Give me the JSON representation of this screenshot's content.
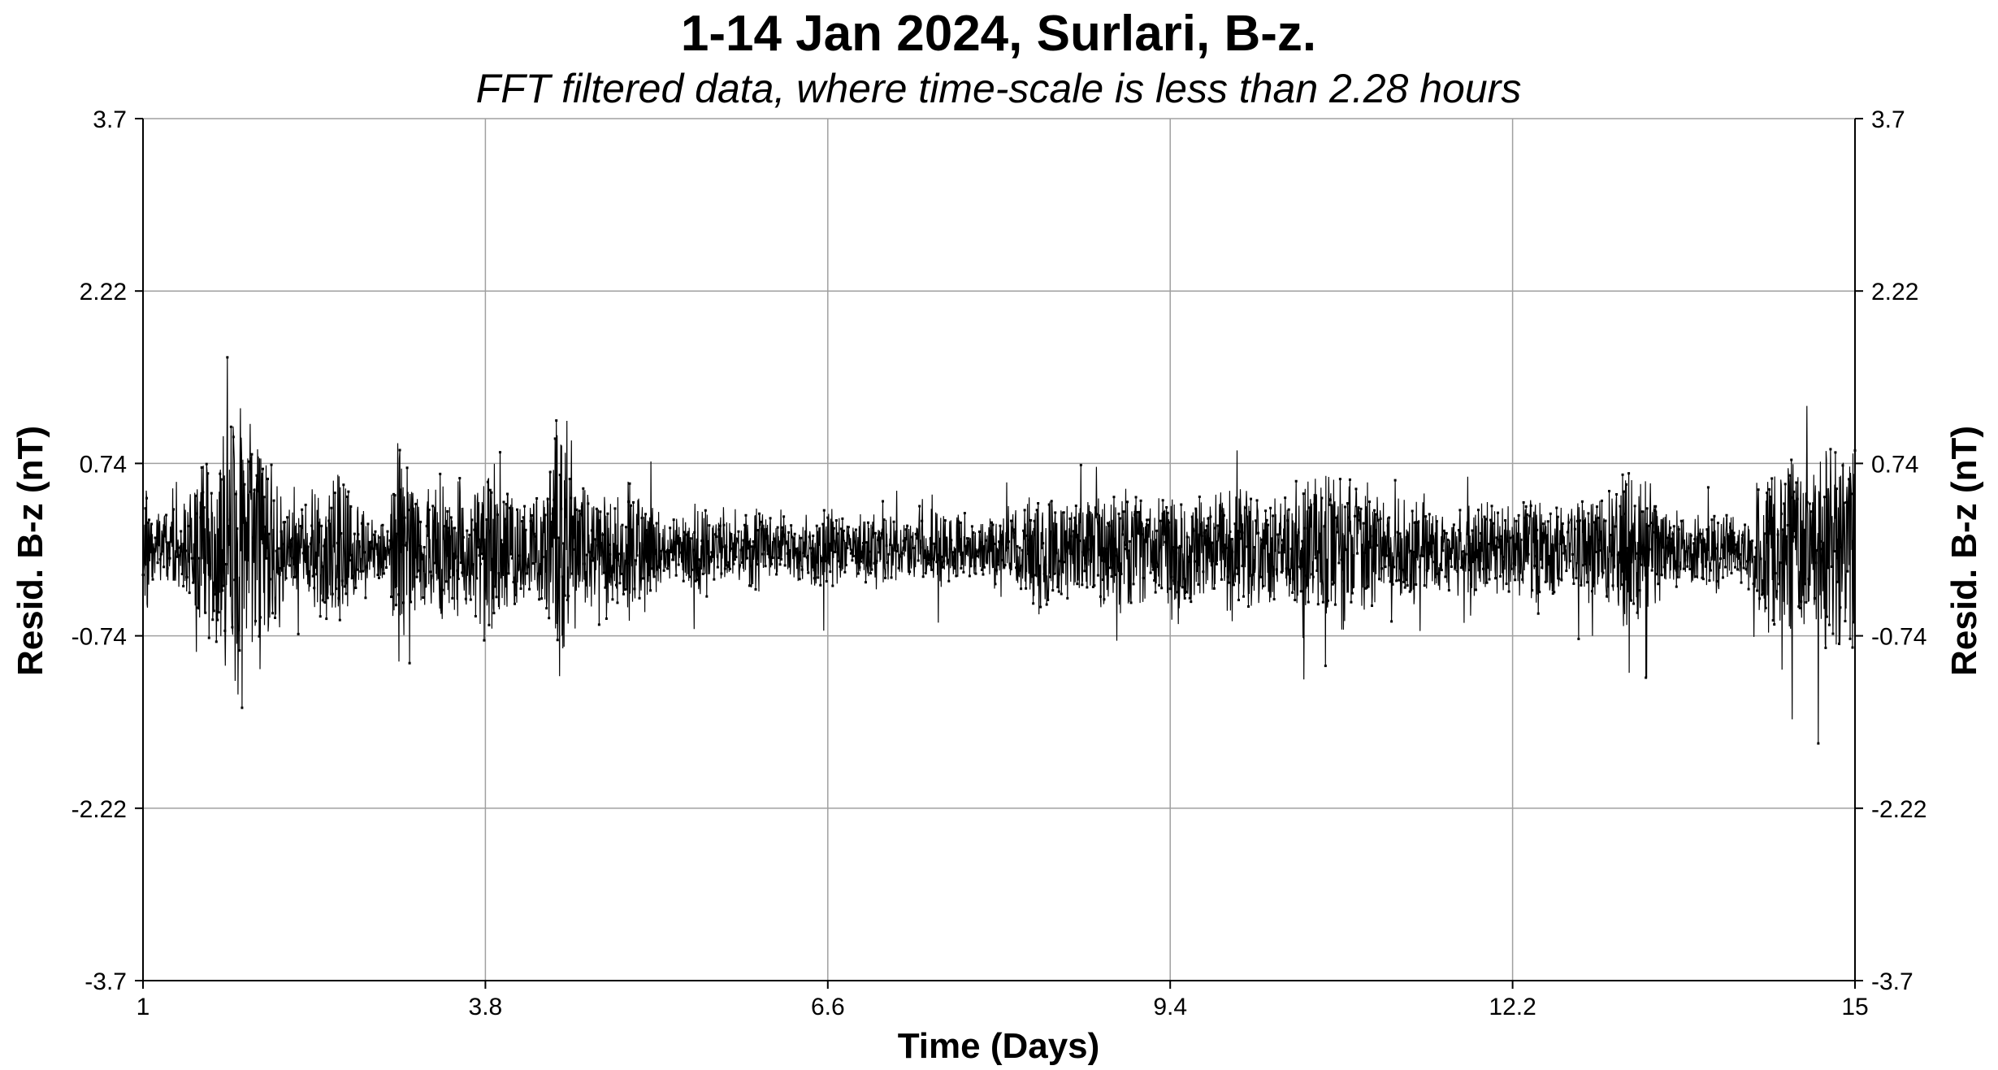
{
  "chart_data": {
    "type": "line",
    "title": "1-14 Jan 2024, Surlari, B-z.",
    "subtitle": "FFT filtered data, where time-scale is less than 2.28 hours",
    "xlabel": "Time (Days)",
    "ylabel": "Resid. B-z (nT)",
    "ylabel_right": "Resid. B-z (nT)",
    "xlim": [
      1,
      15
    ],
    "ylim": [
      -3.7,
      3.7
    ],
    "x_ticks": [
      1,
      3.8,
      6.6,
      9.4,
      12.2,
      15
    ],
    "x_tick_labels": [
      "1",
      "3.8",
      "6.6",
      "9.4",
      "12.2",
      "15"
    ],
    "y_ticks": [
      3.7,
      2.22,
      0.74,
      -0.74,
      -2.22,
      -3.7
    ],
    "y_tick_labels": [
      "3.7",
      "2.22",
      "0.74",
      "-0.74",
      "-2.22",
      "-3.7"
    ],
    "grid": true,
    "colors": {
      "line": "#000000",
      "grid": "#a0a0a0",
      "axes": "#000000",
      "background": "#ffffff"
    },
    "series": [
      {
        "values_note_free": true,
        "x": [
          1.0,
          1.1,
          1.2,
          1.3,
          1.4,
          1.5,
          1.6,
          1.7,
          1.8,
          1.9,
          2.0,
          2.1,
          2.2,
          2.3,
          2.4,
          2.5,
          2.6,
          2.7,
          2.8,
          2.9,
          3.0,
          3.1,
          3.2,
          3.3,
          3.4,
          3.5,
          3.6,
          3.7,
          3.8,
          3.9,
          4.0,
          4.1,
          4.2,
          4.3,
          4.4,
          4.5,
          4.6,
          4.7,
          4.8,
          4.9,
          5.0,
          5.1,
          5.2,
          5.3,
          5.4,
          5.5,
          5.6,
          5.7,
          5.8,
          5.9,
          6.0,
          6.1,
          6.2,
          6.3,
          6.4,
          6.5,
          6.6,
          6.7,
          6.8,
          6.9,
          7.0,
          7.1,
          7.2,
          7.3,
          7.4,
          7.5,
          7.6,
          7.7,
          7.8,
          7.9,
          8.0,
          8.1,
          8.2,
          8.3,
          8.4,
          8.5,
          8.6,
          8.7,
          8.8,
          8.9,
          9.0,
          9.1,
          9.2,
          9.3,
          9.4,
          9.5,
          9.6,
          9.7,
          9.8,
          9.9,
          10.0,
          10.1,
          10.2,
          10.3,
          10.4,
          10.5,
          10.6,
          10.7,
          10.8,
          10.9,
          11.0,
          11.1,
          11.2,
          11.3,
          11.4,
          11.5,
          11.6,
          11.7,
          11.8,
          11.9,
          12.0,
          12.1,
          12.2,
          12.3,
          12.4,
          12.5,
          12.6,
          12.7,
          12.8,
          12.9,
          13.0,
          13.1,
          13.2,
          13.3,
          13.4,
          13.5,
          13.6,
          13.7,
          13.8,
          13.9,
          14.0,
          14.1,
          14.2,
          14.3,
          14.4,
          14.5,
          14.6,
          14.7,
          14.8,
          14.9,
          15.0
        ],
        "amplitude": [
          1.8,
          0.6,
          0.7,
          0.8,
          1.2,
          2.0,
          2.1,
          2.8,
          3.6,
          2.4,
          2.2,
          1.8,
          0.9,
          1.0,
          1.3,
          1.4,
          1.6,
          1.2,
          1.0,
          0.7,
          0.4,
          2.8,
          1.2,
          1.3,
          1.6,
          1.5,
          1.4,
          1.2,
          1.7,
          1.8,
          1.4,
          1.1,
          1.0,
          1.3,
          3.2,
          1.5,
          1.2,
          0.9,
          1.1,
          1.3,
          1.6,
          1.0,
          0.8,
          0.7,
          0.8,
          0.9,
          0.8,
          0.7,
          0.6,
          0.7,
          0.8,
          0.7,
          0.6,
          0.5,
          0.6,
          0.7,
          0.8,
          0.6,
          0.5,
          0.6,
          0.7,
          0.6,
          0.5,
          0.6,
          0.7,
          0.8,
          0.6,
          0.5,
          0.4,
          0.5,
          0.6,
          0.7,
          1.0,
          1.2,
          1.1,
          1.0,
          0.9,
          1.0,
          1.1,
          1.2,
          1.3,
          1.1,
          1.0,
          1.2,
          1.3,
          1.2,
          1.1,
          1.0,
          1.2,
          1.3,
          1.4,
          1.2,
          1.1,
          1.0,
          1.1,
          1.3,
          1.5,
          1.6,
          1.7,
          1.5,
          1.2,
          1.0,
          0.9,
          1.0,
          1.1,
          1.2,
          0.9,
          0.8,
          0.9,
          1.0,
          0.9,
          0.8,
          0.9,
          1.0,
          1.1,
          0.9,
          0.8,
          0.9,
          1.0,
          1.1,
          1.2,
          1.6,
          1.7,
          1.3,
          1.0,
          0.8,
          0.7,
          0.6,
          0.7,
          0.8,
          0.7,
          0.6,
          1.4,
          1.5,
          1.8,
          1.9,
          1.6,
          2.0,
          2.2,
          2.1,
          2.2
        ]
      }
    ]
  }
}
